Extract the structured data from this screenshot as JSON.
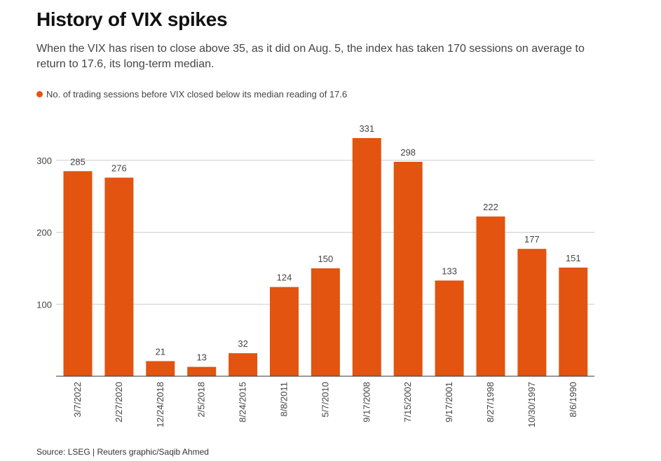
{
  "header": {
    "title": "History of VIX spikes",
    "subtitle": "When the VIX has risen to close above 35, as it did on Aug. 5, the index has taken 170 sessions on average to return to 17.6, its long-term median."
  },
  "footer": {
    "source": "Source: LSEG | Reuters graphic/Saqib Ahmed"
  },
  "chart_data": {
    "type": "bar",
    "categories": [
      "3/7/2022",
      "2/27/2020",
      "12/24/2018",
      "2/5/2018",
      "8/24/2015",
      "8/8/2011",
      "5/7/2010",
      "9/17/2008",
      "7/15/2002",
      "9/17/2001",
      "8/27/1998",
      "10/30/1997",
      "8/6/1990"
    ],
    "series": [
      {
        "name": "No. of trading sessions before VIX closed below its median reading of 17.6",
        "values": [
          285,
          276,
          21,
          13,
          32,
          124,
          150,
          331,
          298,
          133,
          222,
          177,
          151
        ],
        "color": "#e2540f"
      }
    ],
    "yticks": [
      100,
      200,
      300
    ],
    "ylim": [
      0,
      350
    ],
    "grid": true,
    "legend_position": "top-left",
    "data_labels": true
  }
}
